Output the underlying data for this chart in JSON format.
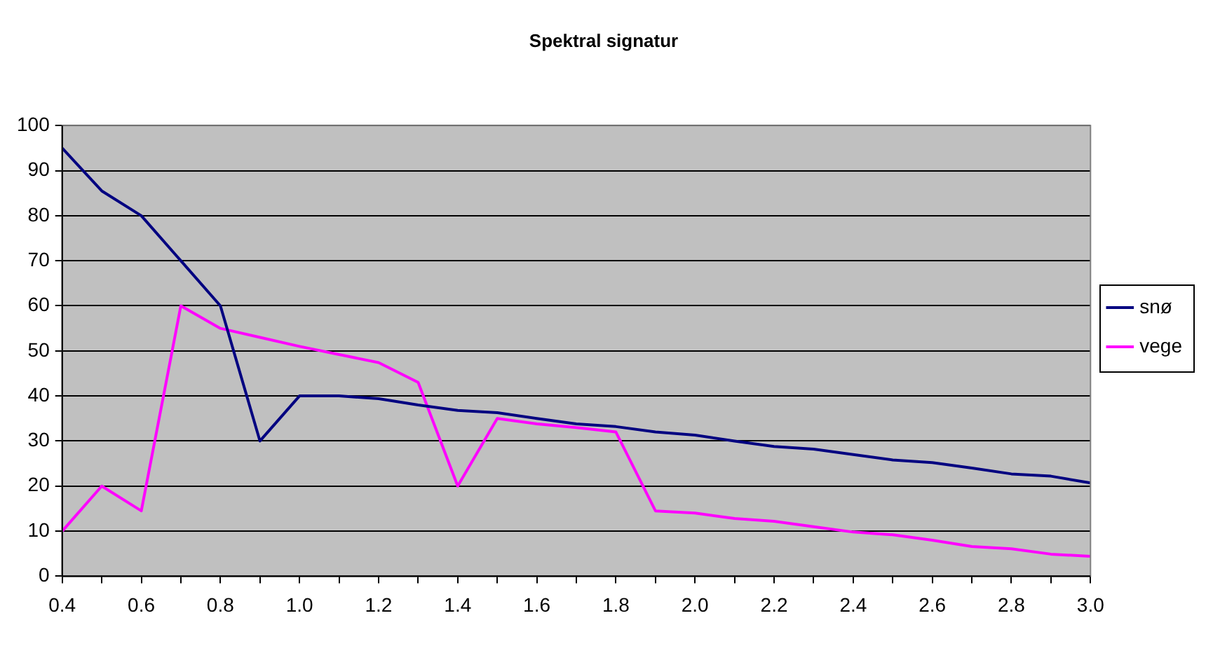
{
  "chart_data": {
    "type": "line",
    "title": "Spektral signatur",
    "x": [
      0.4,
      0.5,
      0.6,
      0.7,
      0.8,
      0.9,
      1.0,
      1.1,
      1.2,
      1.3,
      1.4,
      1.5,
      1.6,
      1.7,
      1.8,
      1.9,
      2.0,
      2.1,
      2.2,
      2.3,
      2.4,
      2.5,
      2.6,
      2.7,
      2.8,
      2.9,
      3.0
    ],
    "series": [
      {
        "name": "snø",
        "color": "#000080",
        "values": [
          95,
          85.5,
          80,
          70,
          60,
          30,
          40,
          40,
          39.4,
          38,
          36.8,
          36.3,
          35,
          33.8,
          33.2,
          32,
          31.3,
          30,
          28.8,
          28.2,
          27,
          25.8,
          25.2,
          24,
          22.7,
          22.2,
          20.7
        ]
      },
      {
        "name": "vege",
        "color": "#ff00ff",
        "values": [
          10,
          20,
          14.5,
          60,
          55,
          53,
          51,
          49.2,
          47.4,
          43,
          20,
          35,
          33.8,
          33,
          32,
          14.5,
          14,
          12.8,
          12.2,
          11,
          9.8,
          9.2,
          8,
          6.6,
          6.1,
          4.9,
          4.4
        ]
      }
    ],
    "xlim": [
      0.4,
      3.0
    ],
    "xticks": [
      0.4,
      {
        "value": 0.5,
        "label": null
      },
      0.6,
      {
        "value": 0.7,
        "label": null
      },
      0.8,
      {
        "value": 0.9,
        "label": null
      },
      {
        "value": 1.0,
        "label": "1.0"
      },
      {
        "value": 1.1,
        "label": null
      },
      1.2,
      {
        "value": 1.3,
        "label": null
      },
      1.4,
      {
        "value": 1.5,
        "label": null
      },
      1.6,
      {
        "value": 1.7,
        "label": null
      },
      1.8,
      {
        "value": 1.9,
        "label": null
      },
      {
        "value": 2.0,
        "label": "2.0"
      },
      {
        "value": 2.1,
        "label": null
      },
      2.2,
      {
        "value": 2.3,
        "label": null
      },
      2.4,
      {
        "value": 2.5,
        "label": null
      },
      2.6,
      {
        "value": 2.7,
        "label": null
      },
      2.8,
      {
        "value": 2.9,
        "label": null
      },
      {
        "value": 3.0,
        "label": "3.0"
      }
    ],
    "ylim": [
      0,
      100
    ],
    "yticks": [
      0,
      10,
      20,
      30,
      40,
      50,
      60,
      70,
      80,
      90,
      100
    ],
    "grid": "y",
    "legend": "right",
    "marker": "none",
    "line_style": "solid"
  }
}
